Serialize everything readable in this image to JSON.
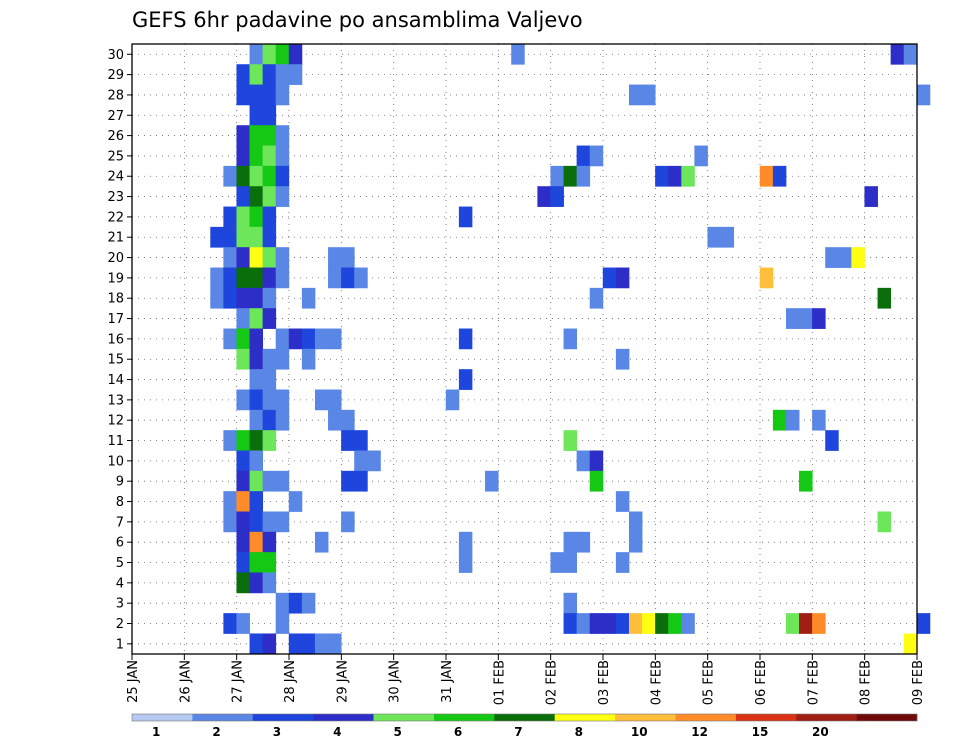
{
  "chart_data": {
    "type": "heatmap",
    "title": "GEFS 6hr padavine po ansamblima Valjevo",
    "y_categories": [
      "1",
      "2",
      "3",
      "4",
      "5",
      "6",
      "7",
      "8",
      "9",
      "10",
      "11",
      "12",
      "13",
      "14",
      "15",
      "16",
      "17",
      "18",
      "19",
      "20",
      "21",
      "22",
      "23",
      "24",
      "25",
      "26",
      "27",
      "28",
      "29",
      "30"
    ],
    "x_tick_labels": [
      "25 JAN",
      "26 JAN",
      "27 JAN",
      "28 JAN",
      "29 JAN",
      "30 JAN",
      "31 JAN",
      "01 FEB",
      "02 FEB",
      "03 FEB",
      "04 FEB",
      "05 FEB",
      "06 FEB",
      "07 FEB",
      "08 FEB",
      "09 FEB"
    ],
    "x_unit": "6-hour steps from 25 JAN 00Z",
    "x_range": [
      0,
      60
    ],
    "grid": true,
    "color_levels": [
      1,
      2,
      3,
      4,
      5,
      6,
      7,
      8,
      10,
      12,
      15,
      20
    ],
    "legend_tick_labels": [
      "1",
      "2",
      "3",
      "4",
      "5",
      "6",
      "7",
      "8",
      "10",
      "12",
      "15",
      "20"
    ],
    "legend_colors": [
      "#b4c8f0",
      "#5a87e6",
      "#1e46dc",
      "#2d2dc8",
      "#6ee65a",
      "#14c814",
      "#0a6e0a",
      "#ffff14",
      "#ffbe3c",
      "#ff8c28",
      "#dc3214",
      "#a01e14",
      "#6e0a0a"
    ],
    "cells": [
      {
        "member": "30",
        "x": 9,
        "level": 1
      },
      {
        "member": "30",
        "x": 10,
        "level": 4
      },
      {
        "member": "30",
        "x": 11,
        "level": 5
      },
      {
        "member": "30",
        "x": 12,
        "level": 3
      },
      {
        "member": "30",
        "x": 29,
        "level": 1
      },
      {
        "member": "30",
        "x": 58,
        "level": 3
      },
      {
        "member": "30",
        "x": 59,
        "level": 1
      },
      {
        "member": "29",
        "x": 8,
        "level": 2
      },
      {
        "member": "29",
        "x": 9,
        "level": 4
      },
      {
        "member": "29",
        "x": 10,
        "level": 2
      },
      {
        "member": "29",
        "x": 11,
        "level": 1
      },
      {
        "member": "29",
        "x": 12,
        "level": 1
      },
      {
        "member": "28",
        "x": 8,
        "level": 2
      },
      {
        "member": "28",
        "x": 9,
        "level": 2
      },
      {
        "member": "28",
        "x": 10,
        "level": 2
      },
      {
        "member": "28",
        "x": 11,
        "level": 1
      },
      {
        "member": "28",
        "x": 38,
        "level": 1
      },
      {
        "member": "28",
        "x": 39,
        "level": 1
      },
      {
        "member": "28",
        "x": 60,
        "level": 1
      },
      {
        "member": "27",
        "x": 9,
        "level": 2
      },
      {
        "member": "27",
        "x": 10,
        "level": 2
      },
      {
        "member": "26",
        "x": 8,
        "level": 3
      },
      {
        "member": "26",
        "x": 9,
        "level": 5
      },
      {
        "member": "26",
        "x": 10,
        "level": 5
      },
      {
        "member": "26",
        "x": 11,
        "level": 1
      },
      {
        "member": "25",
        "x": 8,
        "level": 3
      },
      {
        "member": "25",
        "x": 9,
        "level": 5
      },
      {
        "member": "25",
        "x": 10,
        "level": 4
      },
      {
        "member": "25",
        "x": 11,
        "level": 1
      },
      {
        "member": "25",
        "x": 34,
        "level": 2
      },
      {
        "member": "25",
        "x": 35,
        "level": 1
      },
      {
        "member": "25",
        "x": 43,
        "level": 1
      },
      {
        "member": "24",
        "x": 7,
        "level": 1
      },
      {
        "member": "24",
        "x": 8,
        "level": 6
      },
      {
        "member": "24",
        "x": 9,
        "level": 4
      },
      {
        "member": "24",
        "x": 10,
        "level": 5
      },
      {
        "member": "24",
        "x": 11,
        "level": 2
      },
      {
        "member": "24",
        "x": 32,
        "level": 1
      },
      {
        "member": "24",
        "x": 33,
        "level": 6
      },
      {
        "member": "24",
        "x": 34,
        "level": 1
      },
      {
        "member": "24",
        "x": 40,
        "level": 2
      },
      {
        "member": "24",
        "x": 41,
        "level": 3
      },
      {
        "member": "24",
        "x": 42,
        "level": 4
      },
      {
        "member": "24",
        "x": 48,
        "level": 9
      },
      {
        "member": "24",
        "x": 49,
        "level": 2
      },
      {
        "member": "23",
        "x": 8,
        "level": 2
      },
      {
        "member": "23",
        "x": 9,
        "level": 6
      },
      {
        "member": "23",
        "x": 10,
        "level": 4
      },
      {
        "member": "23",
        "x": 11,
        "level": 1
      },
      {
        "member": "23",
        "x": 31,
        "level": 3
      },
      {
        "member": "23",
        "x": 32,
        "level": 2
      },
      {
        "member": "23",
        "x": 56,
        "level": 3
      },
      {
        "member": "22",
        "x": 7,
        "level": 2
      },
      {
        "member": "22",
        "x": 8,
        "level": 4
      },
      {
        "member": "22",
        "x": 9,
        "level": 5
      },
      {
        "member": "22",
        "x": 10,
        "level": 2
      },
      {
        "member": "22",
        "x": 25,
        "level": 2
      },
      {
        "member": "21",
        "x": 6,
        "level": 2
      },
      {
        "member": "21",
        "x": 7,
        "level": 2
      },
      {
        "member": "21",
        "x": 8,
        "level": 4
      },
      {
        "member": "21",
        "x": 9,
        "level": 4
      },
      {
        "member": "21",
        "x": 10,
        "level": 2
      },
      {
        "member": "21",
        "x": 44,
        "level": 1
      },
      {
        "member": "21",
        "x": 45,
        "level": 1
      },
      {
        "member": "20",
        "x": 7,
        "level": 1
      },
      {
        "member": "20",
        "x": 8,
        "level": 3
      },
      {
        "member": "20",
        "x": 9,
        "level": 7
      },
      {
        "member": "20",
        "x": 10,
        "level": 4
      },
      {
        "member": "20",
        "x": 11,
        "level": 1
      },
      {
        "member": "20",
        "x": 15,
        "level": 1
      },
      {
        "member": "20",
        "x": 16,
        "level": 1
      },
      {
        "member": "20",
        "x": 53,
        "level": 1
      },
      {
        "member": "20",
        "x": 54,
        "level": 1
      },
      {
        "member": "20",
        "x": 55,
        "level": 7
      },
      {
        "member": "19",
        "x": 6,
        "level": 1
      },
      {
        "member": "19",
        "x": 7,
        "level": 2
      },
      {
        "member": "19",
        "x": 8,
        "level": 6
      },
      {
        "member": "19",
        "x": 9,
        "level": 6
      },
      {
        "member": "19",
        "x": 10,
        "level": 3
      },
      {
        "member": "19",
        "x": 11,
        "level": 1
      },
      {
        "member": "19",
        "x": 15,
        "level": 1
      },
      {
        "member": "19",
        "x": 16,
        "level": 2
      },
      {
        "member": "19",
        "x": 17,
        "level": 1
      },
      {
        "member": "19",
        "x": 36,
        "level": 2
      },
      {
        "member": "19",
        "x": 37,
        "level": 3
      },
      {
        "member": "19",
        "x": 48,
        "level": 8
      },
      {
        "member": "18",
        "x": 6,
        "level": 1
      },
      {
        "member": "18",
        "x": 7,
        "level": 2
      },
      {
        "member": "18",
        "x": 8,
        "level": 3
      },
      {
        "member": "18",
        "x": 9,
        "level": 3
      },
      {
        "member": "18",
        "x": 10,
        "level": 1
      },
      {
        "member": "18",
        "x": 13,
        "level": 1
      },
      {
        "member": "18",
        "x": 35,
        "level": 1
      },
      {
        "member": "18",
        "x": 57,
        "level": 6
      },
      {
        "member": "17",
        "x": 8,
        "level": 1
      },
      {
        "member": "17",
        "x": 9,
        "level": 4
      },
      {
        "member": "17",
        "x": 10,
        "level": 3
      },
      {
        "member": "17",
        "x": 50,
        "level": 1
      },
      {
        "member": "17",
        "x": 51,
        "level": 1
      },
      {
        "member": "17",
        "x": 52,
        "level": 3
      },
      {
        "member": "16",
        "x": 7,
        "level": 1
      },
      {
        "member": "16",
        "x": 8,
        "level": 5
      },
      {
        "member": "16",
        "x": 9,
        "level": 3
      },
      {
        "member": "16",
        "x": 11,
        "level": 1
      },
      {
        "member": "16",
        "x": 12,
        "level": 3
      },
      {
        "member": "16",
        "x": 13,
        "level": 2
      },
      {
        "member": "16",
        "x": 14,
        "level": 1
      },
      {
        "member": "16",
        "x": 15,
        "level": 1
      },
      {
        "member": "16",
        "x": 25,
        "level": 2
      },
      {
        "member": "16",
        "x": 33,
        "level": 1
      },
      {
        "member": "15",
        "x": 8,
        "level": 4
      },
      {
        "member": "15",
        "x": 9,
        "level": 3
      },
      {
        "member": "15",
        "x": 10,
        "level": 1
      },
      {
        "member": "15",
        "x": 11,
        "level": 1
      },
      {
        "member": "15",
        "x": 13,
        "level": 1
      },
      {
        "member": "15",
        "x": 37,
        "level": 1
      },
      {
        "member": "14",
        "x": 9,
        "level": 1
      },
      {
        "member": "14",
        "x": 10,
        "level": 1
      },
      {
        "member": "14",
        "x": 25,
        "level": 2
      },
      {
        "member": "13",
        "x": 8,
        "level": 1
      },
      {
        "member": "13",
        "x": 9,
        "level": 2
      },
      {
        "member": "13",
        "x": 10,
        "level": 1
      },
      {
        "member": "13",
        "x": 11,
        "level": 1
      },
      {
        "member": "13",
        "x": 14,
        "level": 1
      },
      {
        "member": "13",
        "x": 15,
        "level": 1
      },
      {
        "member": "13",
        "x": 24,
        "level": 1
      },
      {
        "member": "12",
        "x": 9,
        "level": 1
      },
      {
        "member": "12",
        "x": 10,
        "level": 2
      },
      {
        "member": "12",
        "x": 11,
        "level": 1
      },
      {
        "member": "12",
        "x": 15,
        "level": 1
      },
      {
        "member": "12",
        "x": 16,
        "level": 1
      },
      {
        "member": "12",
        "x": 49,
        "level": 5
      },
      {
        "member": "12",
        "x": 50,
        "level": 1
      },
      {
        "member": "12",
        "x": 52,
        "level": 1
      },
      {
        "member": "11",
        "x": 7,
        "level": 1
      },
      {
        "member": "11",
        "x": 8,
        "level": 5
      },
      {
        "member": "11",
        "x": 9,
        "level": 6
      },
      {
        "member": "11",
        "x": 10,
        "level": 4
      },
      {
        "member": "11",
        "x": 16,
        "level": 2
      },
      {
        "member": "11",
        "x": 17,
        "level": 2
      },
      {
        "member": "11",
        "x": 33,
        "level": 4
      },
      {
        "member": "11",
        "x": 53,
        "level": 2
      },
      {
        "member": "10",
        "x": 8,
        "level": 2
      },
      {
        "member": "10",
        "x": 9,
        "level": 1
      },
      {
        "member": "10",
        "x": 17,
        "level": 1
      },
      {
        "member": "10",
        "x": 18,
        "level": 1
      },
      {
        "member": "10",
        "x": 34,
        "level": 1
      },
      {
        "member": "10",
        "x": 35,
        "level": 3
      },
      {
        "member": "9",
        "x": 8,
        "level": 3
      },
      {
        "member": "9",
        "x": 9,
        "level": 4
      },
      {
        "member": "9",
        "x": 10,
        "level": 1
      },
      {
        "member": "9",
        "x": 11,
        "level": 1
      },
      {
        "member": "9",
        "x": 16,
        "level": 2
      },
      {
        "member": "9",
        "x": 17,
        "level": 2
      },
      {
        "member": "9",
        "x": 27,
        "level": 1
      },
      {
        "member": "9",
        "x": 35,
        "level": 5
      },
      {
        "member": "9",
        "x": 51,
        "level": 5
      },
      {
        "member": "8",
        "x": 7,
        "level": 1
      },
      {
        "member": "8",
        "x": 8,
        "level": 9
      },
      {
        "member": "8",
        "x": 9,
        "level": 2
      },
      {
        "member": "8",
        "x": 12,
        "level": 1
      },
      {
        "member": "8",
        "x": 37,
        "level": 1
      },
      {
        "member": "7",
        "x": 7,
        "level": 1
      },
      {
        "member": "7",
        "x": 8,
        "level": 3
      },
      {
        "member": "7",
        "x": 9,
        "level": 2
      },
      {
        "member": "7",
        "x": 10,
        "level": 1
      },
      {
        "member": "7",
        "x": 11,
        "level": 1
      },
      {
        "member": "7",
        "x": 16,
        "level": 1
      },
      {
        "member": "7",
        "x": 38,
        "level": 1
      },
      {
        "member": "7",
        "x": 57,
        "level": 4
      },
      {
        "member": "6",
        "x": 8,
        "level": 3
      },
      {
        "member": "6",
        "x": 9,
        "level": 9
      },
      {
        "member": "6",
        "x": 10,
        "level": 3
      },
      {
        "member": "6",
        "x": 14,
        "level": 1
      },
      {
        "member": "6",
        "x": 25,
        "level": 1
      },
      {
        "member": "6",
        "x": 33,
        "level": 1
      },
      {
        "member": "6",
        "x": 34,
        "level": 1
      },
      {
        "member": "6",
        "x": 38,
        "level": 1
      },
      {
        "member": "5",
        "x": 8,
        "level": 2
      },
      {
        "member": "5",
        "x": 9,
        "level": 5
      },
      {
        "member": "5",
        "x": 10,
        "level": 5
      },
      {
        "member": "5",
        "x": 25,
        "level": 1
      },
      {
        "member": "5",
        "x": 32,
        "level": 1
      },
      {
        "member": "5",
        "x": 33,
        "level": 1
      },
      {
        "member": "5",
        "x": 37,
        "level": 1
      },
      {
        "member": "4",
        "x": 8,
        "level": 6
      },
      {
        "member": "4",
        "x": 9,
        "level": 3
      },
      {
        "member": "4",
        "x": 10,
        "level": 1
      },
      {
        "member": "3",
        "x": 11,
        "level": 1
      },
      {
        "member": "3",
        "x": 12,
        "level": 2
      },
      {
        "member": "3",
        "x": 13,
        "level": 1
      },
      {
        "member": "3",
        "x": 33,
        "level": 1
      },
      {
        "member": "2",
        "x": 7,
        "level": 2
      },
      {
        "member": "2",
        "x": 8,
        "level": 1
      },
      {
        "member": "2",
        "x": 11,
        "level": 1
      },
      {
        "member": "2",
        "x": 33,
        "level": 2
      },
      {
        "member": "2",
        "x": 34,
        "level": 1
      },
      {
        "member": "2",
        "x": 35,
        "level": 3
      },
      {
        "member": "2",
        "x": 36,
        "level": 3
      },
      {
        "member": "2",
        "x": 37,
        "level": 2
      },
      {
        "member": "2",
        "x": 38,
        "level": 8
      },
      {
        "member": "2",
        "x": 39,
        "level": 7
      },
      {
        "member": "2",
        "x": 40,
        "level": 6
      },
      {
        "member": "2",
        "x": 41,
        "level": 5
      },
      {
        "member": "2",
        "x": 42,
        "level": 1
      },
      {
        "member": "2",
        "x": 50,
        "level": 4
      },
      {
        "member": "2",
        "x": 51,
        "level": 11
      },
      {
        "member": "2",
        "x": 52,
        "level": 9
      },
      {
        "member": "2",
        "x": 60,
        "level": 2
      },
      {
        "member": "1",
        "x": 9,
        "level": 2
      },
      {
        "member": "1",
        "x": 10,
        "level": 3
      },
      {
        "member": "1",
        "x": 12,
        "level": 2
      },
      {
        "member": "1",
        "x": 13,
        "level": 2
      },
      {
        "member": "1",
        "x": 14,
        "level": 1
      },
      {
        "member": "1",
        "x": 15,
        "level": 1
      },
      {
        "member": "1",
        "x": 59,
        "level": 7
      }
    ]
  }
}
